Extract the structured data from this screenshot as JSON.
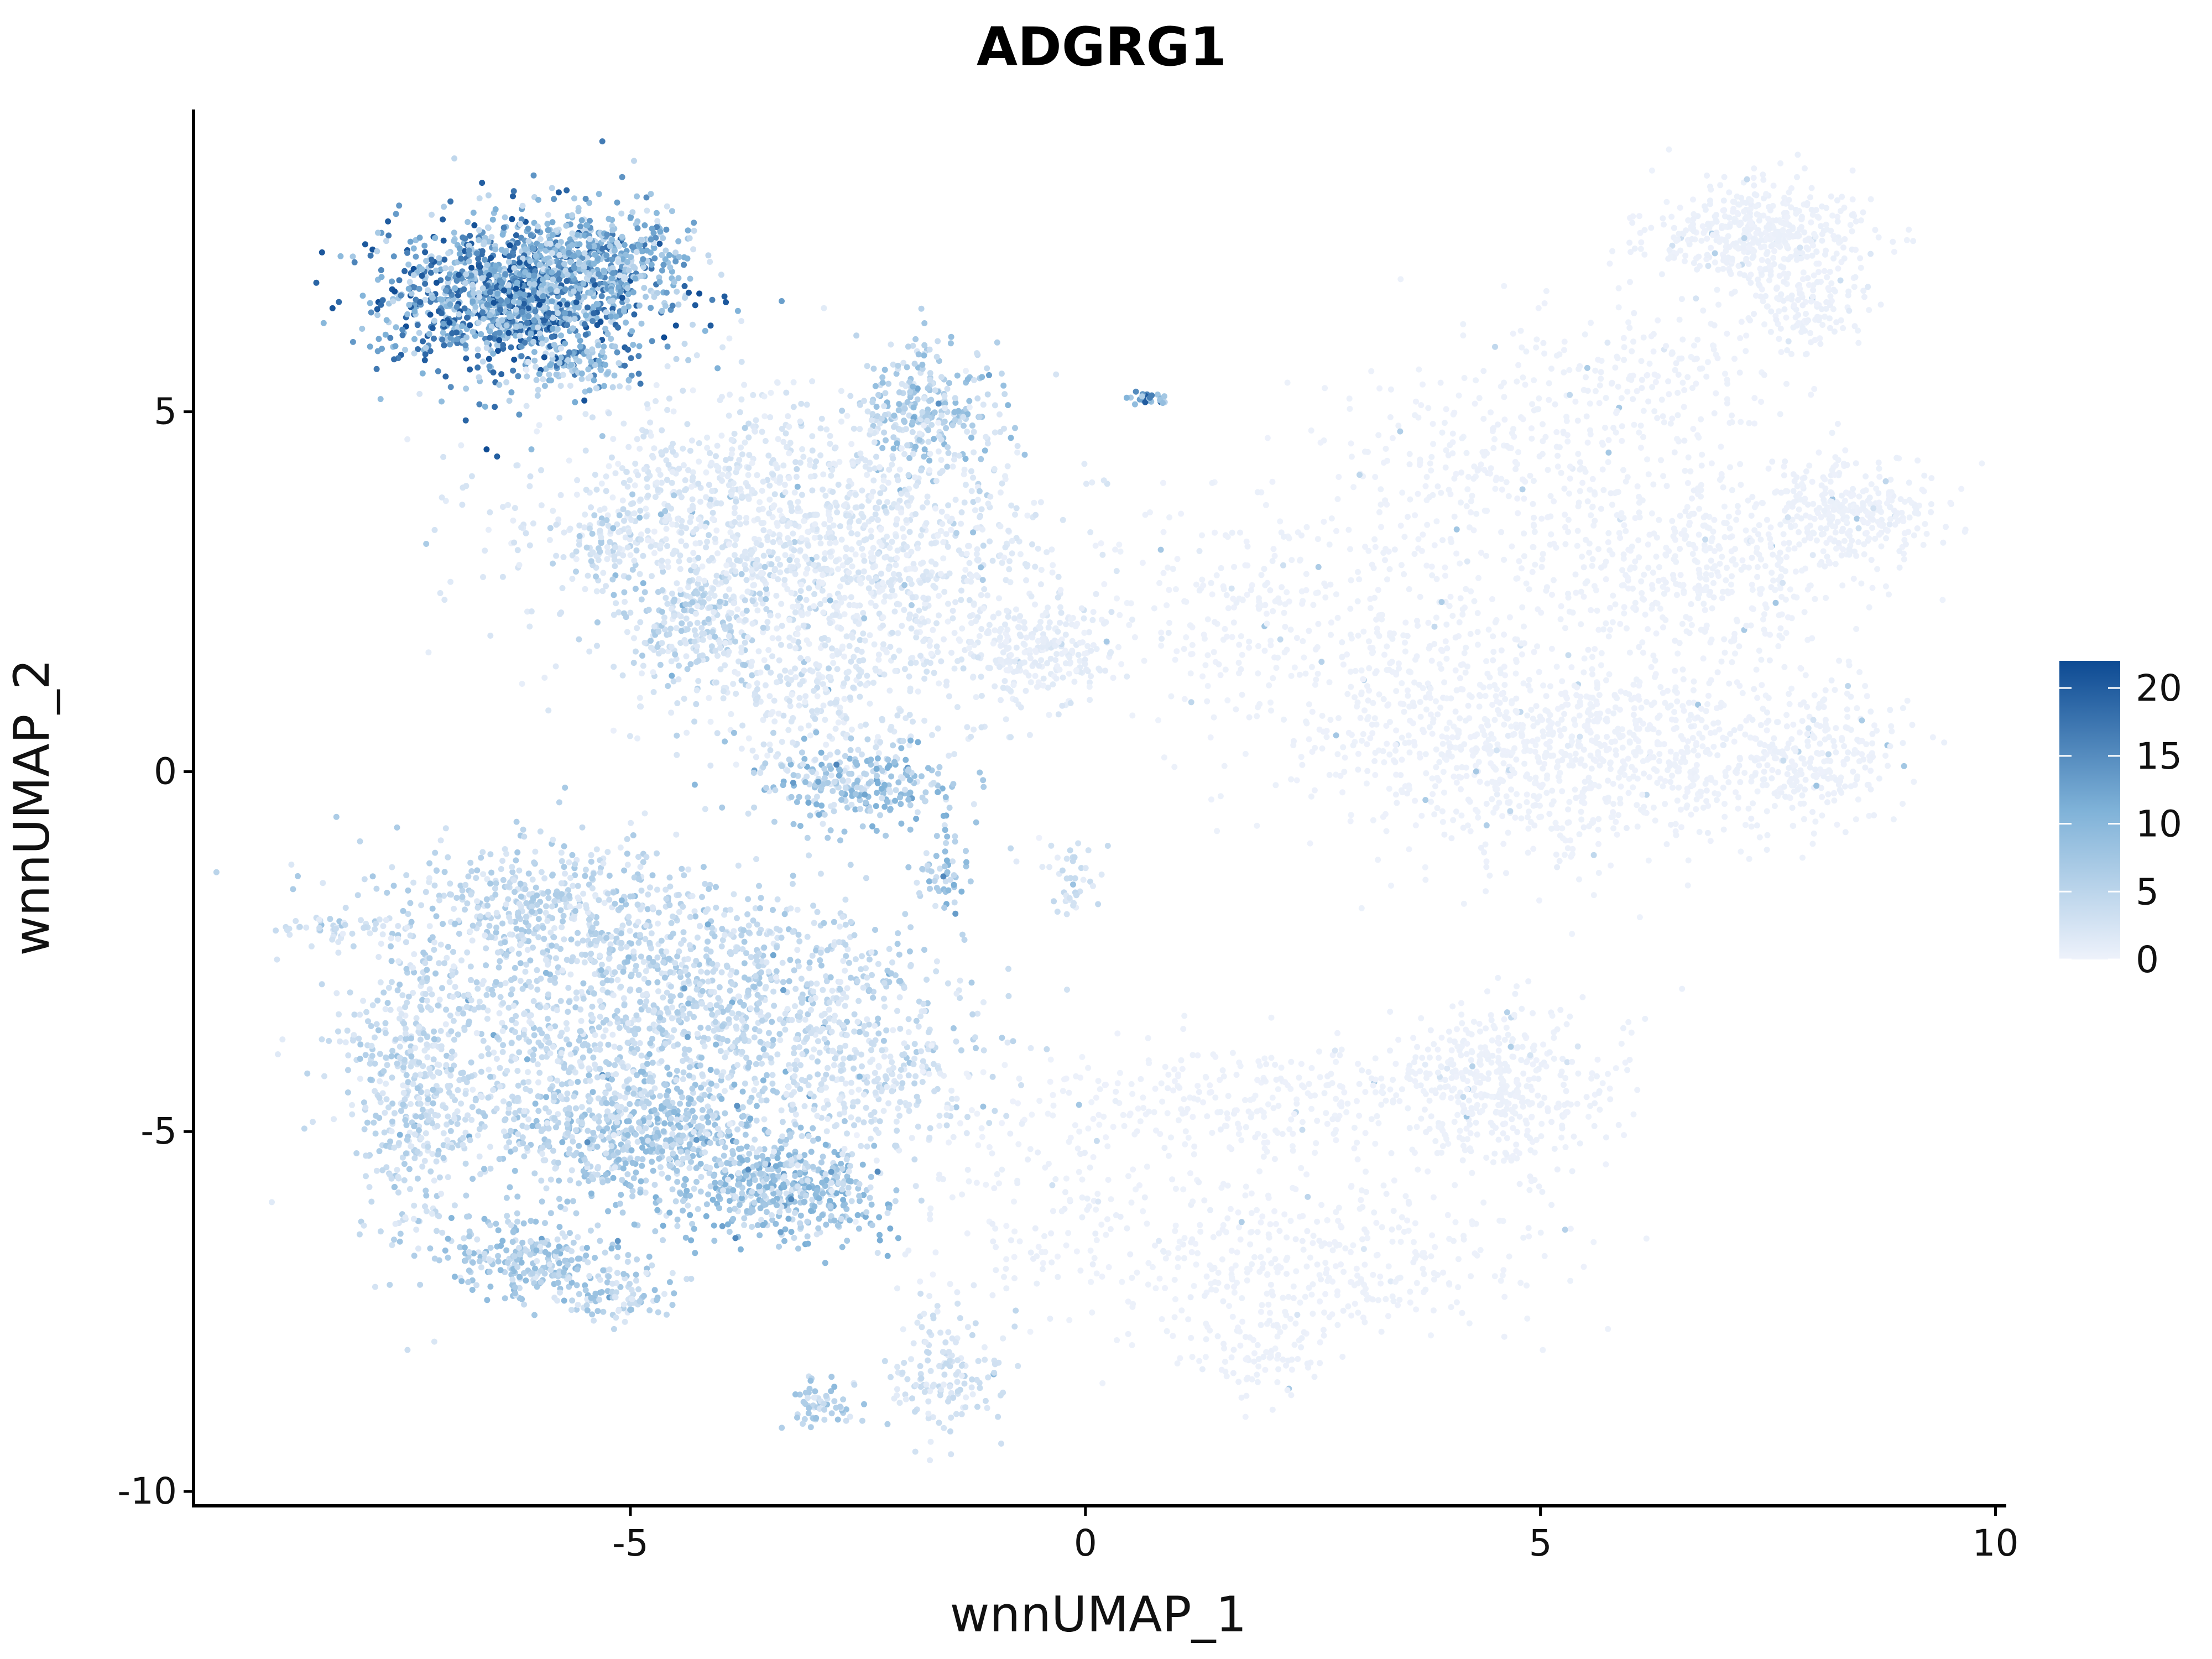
{
  "chart_data": {
    "type": "scatter",
    "title": "ADGRG1",
    "xlabel": "wnnUMAP_1",
    "ylabel": "wnnUMAP_2",
    "xlim": [
      -9.8,
      10.1
    ],
    "ylim": [
      -10.2,
      9.2
    ],
    "x_ticks": [
      {
        "value": -5,
        "label": "-5"
      },
      {
        "value": 0,
        "label": "0"
      },
      {
        "value": 5,
        "label": "5"
      },
      {
        "value": 10,
        "label": "10"
      }
    ],
    "y_ticks": [
      {
        "value": -10,
        "label": "-10"
      },
      {
        "value": -5,
        "label": "-5"
      },
      {
        "value": 0,
        "label": "0"
      },
      {
        "value": 5,
        "label": "5"
      }
    ],
    "grid": false,
    "legend": {
      "placement": "right",
      "scale_min": 0,
      "scale_max": 22,
      "ticks": [
        {
          "value": 0,
          "label": "0"
        },
        {
          "value": 5,
          "label": "5"
        },
        {
          "value": 10,
          "label": "10"
        },
        {
          "value": 15,
          "label": "15"
        },
        {
          "value": 20,
          "label": "20"
        }
      ],
      "color_low": "#eef2fb",
      "color_high": "#0d4a93"
    },
    "clusters": [
      {
        "cx": -6.2,
        "cy": 6.6,
        "sx": 0.75,
        "sy": 0.55,
        "n": 1400,
        "expr": 15
      },
      {
        "cx": -5.3,
        "cy": 7.2,
        "sx": 0.5,
        "sy": 0.35,
        "n": 300,
        "expr": 10
      },
      {
        "cx": -5.6,
        "cy": 5.6,
        "sx": 0.3,
        "sy": 0.15,
        "n": 60,
        "expr": 8
      },
      {
        "cx": -1.8,
        "cy": 5.0,
        "sx": 0.4,
        "sy": 0.5,
        "n": 280,
        "expr": 7
      },
      {
        "cx": -3.6,
        "cy": 3.5,
        "sx": 1.3,
        "sy": 0.9,
        "n": 1000,
        "expr": 2
      },
      {
        "cx": -4.2,
        "cy": 2.1,
        "sx": 0.5,
        "sy": 0.5,
        "n": 250,
        "expr": 5
      },
      {
        "cx": -5.2,
        "cy": 3.2,
        "sx": 0.25,
        "sy": 0.3,
        "n": 60,
        "expr": 5
      },
      {
        "cx": -2.3,
        "cy": 2.8,
        "sx": 1.0,
        "sy": 0.8,
        "n": 500,
        "expr": 1.5
      },
      {
        "cx": -0.5,
        "cy": 1.7,
        "sx": 0.5,
        "sy": 0.35,
        "n": 250,
        "expr": 1
      },
      {
        "cx": -2.8,
        "cy": 1.0,
        "sx": 0.8,
        "sy": 0.6,
        "n": 300,
        "expr": 2
      },
      {
        "cx": -2.5,
        "cy": -0.2,
        "sx": 0.55,
        "sy": 0.3,
        "n": 250,
        "expr": 8
      },
      {
        "cx": -1.6,
        "cy": -1.4,
        "sx": 0.15,
        "sy": 0.25,
        "n": 50,
        "expr": 8
      },
      {
        "cx": 0.7,
        "cy": 5.2,
        "sx": 0.1,
        "sy": 0.06,
        "n": 25,
        "expr": 14
      },
      {
        "cx": -0.1,
        "cy": -1.5,
        "sx": 0.12,
        "sy": 0.3,
        "n": 40,
        "expr": 3
      },
      {
        "cx": 7.4,
        "cy": 7.5,
        "sx": 0.6,
        "sy": 0.35,
        "n": 450,
        "expr": 0.3
      },
      {
        "cx": 7.9,
        "cy": 6.5,
        "sx": 0.35,
        "sy": 0.35,
        "n": 150,
        "expr": 0.3
      },
      {
        "cx": 8.4,
        "cy": 3.6,
        "sx": 0.45,
        "sy": 0.4,
        "n": 300,
        "expr": 0.3
      },
      {
        "cx": 6.8,
        "cy": 2.7,
        "sx": 0.8,
        "sy": 0.7,
        "n": 400,
        "expr": 0.2
      },
      {
        "cx": 4.8,
        "cy": 4.1,
        "sx": 1.2,
        "sy": 0.8,
        "n": 400,
        "expr": 0.2
      },
      {
        "cx": 5.4,
        "cy": 0.2,
        "sx": 1.3,
        "sy": 0.7,
        "n": 900,
        "expr": 0.2
      },
      {
        "cx": 7.9,
        "cy": 0.2,
        "sx": 0.45,
        "sy": 0.45,
        "n": 250,
        "expr": 0.3
      },
      {
        "cx": 3.2,
        "cy": 1.5,
        "sx": 1.1,
        "sy": 0.8,
        "n": 350,
        "expr": 0.2
      },
      {
        "cx": 1.5,
        "cy": 2.5,
        "sx": 0.8,
        "sy": 0.7,
        "n": 120,
        "expr": 0.3
      },
      {
        "cx": 6.2,
        "cy": 5.5,
        "sx": 0.8,
        "sy": 0.5,
        "n": 150,
        "expr": 0.2
      },
      {
        "cx": -6.0,
        "cy": -1.9,
        "sx": 1.0,
        "sy": 0.5,
        "n": 500,
        "expr": 5
      },
      {
        "cx": -4.0,
        "cy": -3.2,
        "sx": 1.2,
        "sy": 0.8,
        "n": 1000,
        "expr": 5
      },
      {
        "cx": -4.8,
        "cy": -5.0,
        "sx": 0.7,
        "sy": 0.5,
        "n": 600,
        "expr": 7
      },
      {
        "cx": -3.3,
        "cy": -5.8,
        "sx": 0.55,
        "sy": 0.35,
        "n": 450,
        "expr": 8
      },
      {
        "cx": -6.5,
        "cy": -4.0,
        "sx": 0.9,
        "sy": 0.9,
        "n": 500,
        "expr": 4
      },
      {
        "cx": -7.4,
        "cy": -4.8,
        "sx": 0.3,
        "sy": 1.1,
        "n": 300,
        "expr": 5
      },
      {
        "cx": -6.0,
        "cy": -6.8,
        "sx": 0.5,
        "sy": 0.25,
        "n": 250,
        "expr": 7
      },
      {
        "cx": -5.1,
        "cy": -7.3,
        "sx": 0.3,
        "sy": 0.2,
        "n": 90,
        "expr": 6
      },
      {
        "cx": -8.2,
        "cy": -2.2,
        "sx": 0.4,
        "sy": 0.1,
        "n": 40,
        "expr": 3
      },
      {
        "cx": -2.5,
        "cy": -4.3,
        "sx": 0.7,
        "sy": 0.7,
        "n": 300,
        "expr": 3
      },
      {
        "cx": -1.6,
        "cy": -8.4,
        "sx": 0.35,
        "sy": 0.5,
        "n": 150,
        "expr": 3
      },
      {
        "cx": -2.9,
        "cy": -8.8,
        "sx": 0.2,
        "sy": 0.2,
        "n": 60,
        "expr": 6
      },
      {
        "cx": 4.6,
        "cy": -4.4,
        "sx": 0.6,
        "sy": 0.6,
        "n": 400,
        "expr": 0.3
      },
      {
        "cx": 2.0,
        "cy": -4.6,
        "sx": 1.5,
        "sy": 0.4,
        "n": 350,
        "expr": 0.2
      },
      {
        "cx": 2.5,
        "cy": -6.8,
        "sx": 1.4,
        "sy": 0.6,
        "n": 400,
        "expr": 0.2
      },
      {
        "cx": 2.0,
        "cy": -8.1,
        "sx": 0.4,
        "sy": 0.3,
        "n": 80,
        "expr": 0.3
      },
      {
        "cx": -0.5,
        "cy": -6.0,
        "sx": 0.8,
        "sy": 0.8,
        "n": 120,
        "expr": 0.5
      }
    ]
  }
}
